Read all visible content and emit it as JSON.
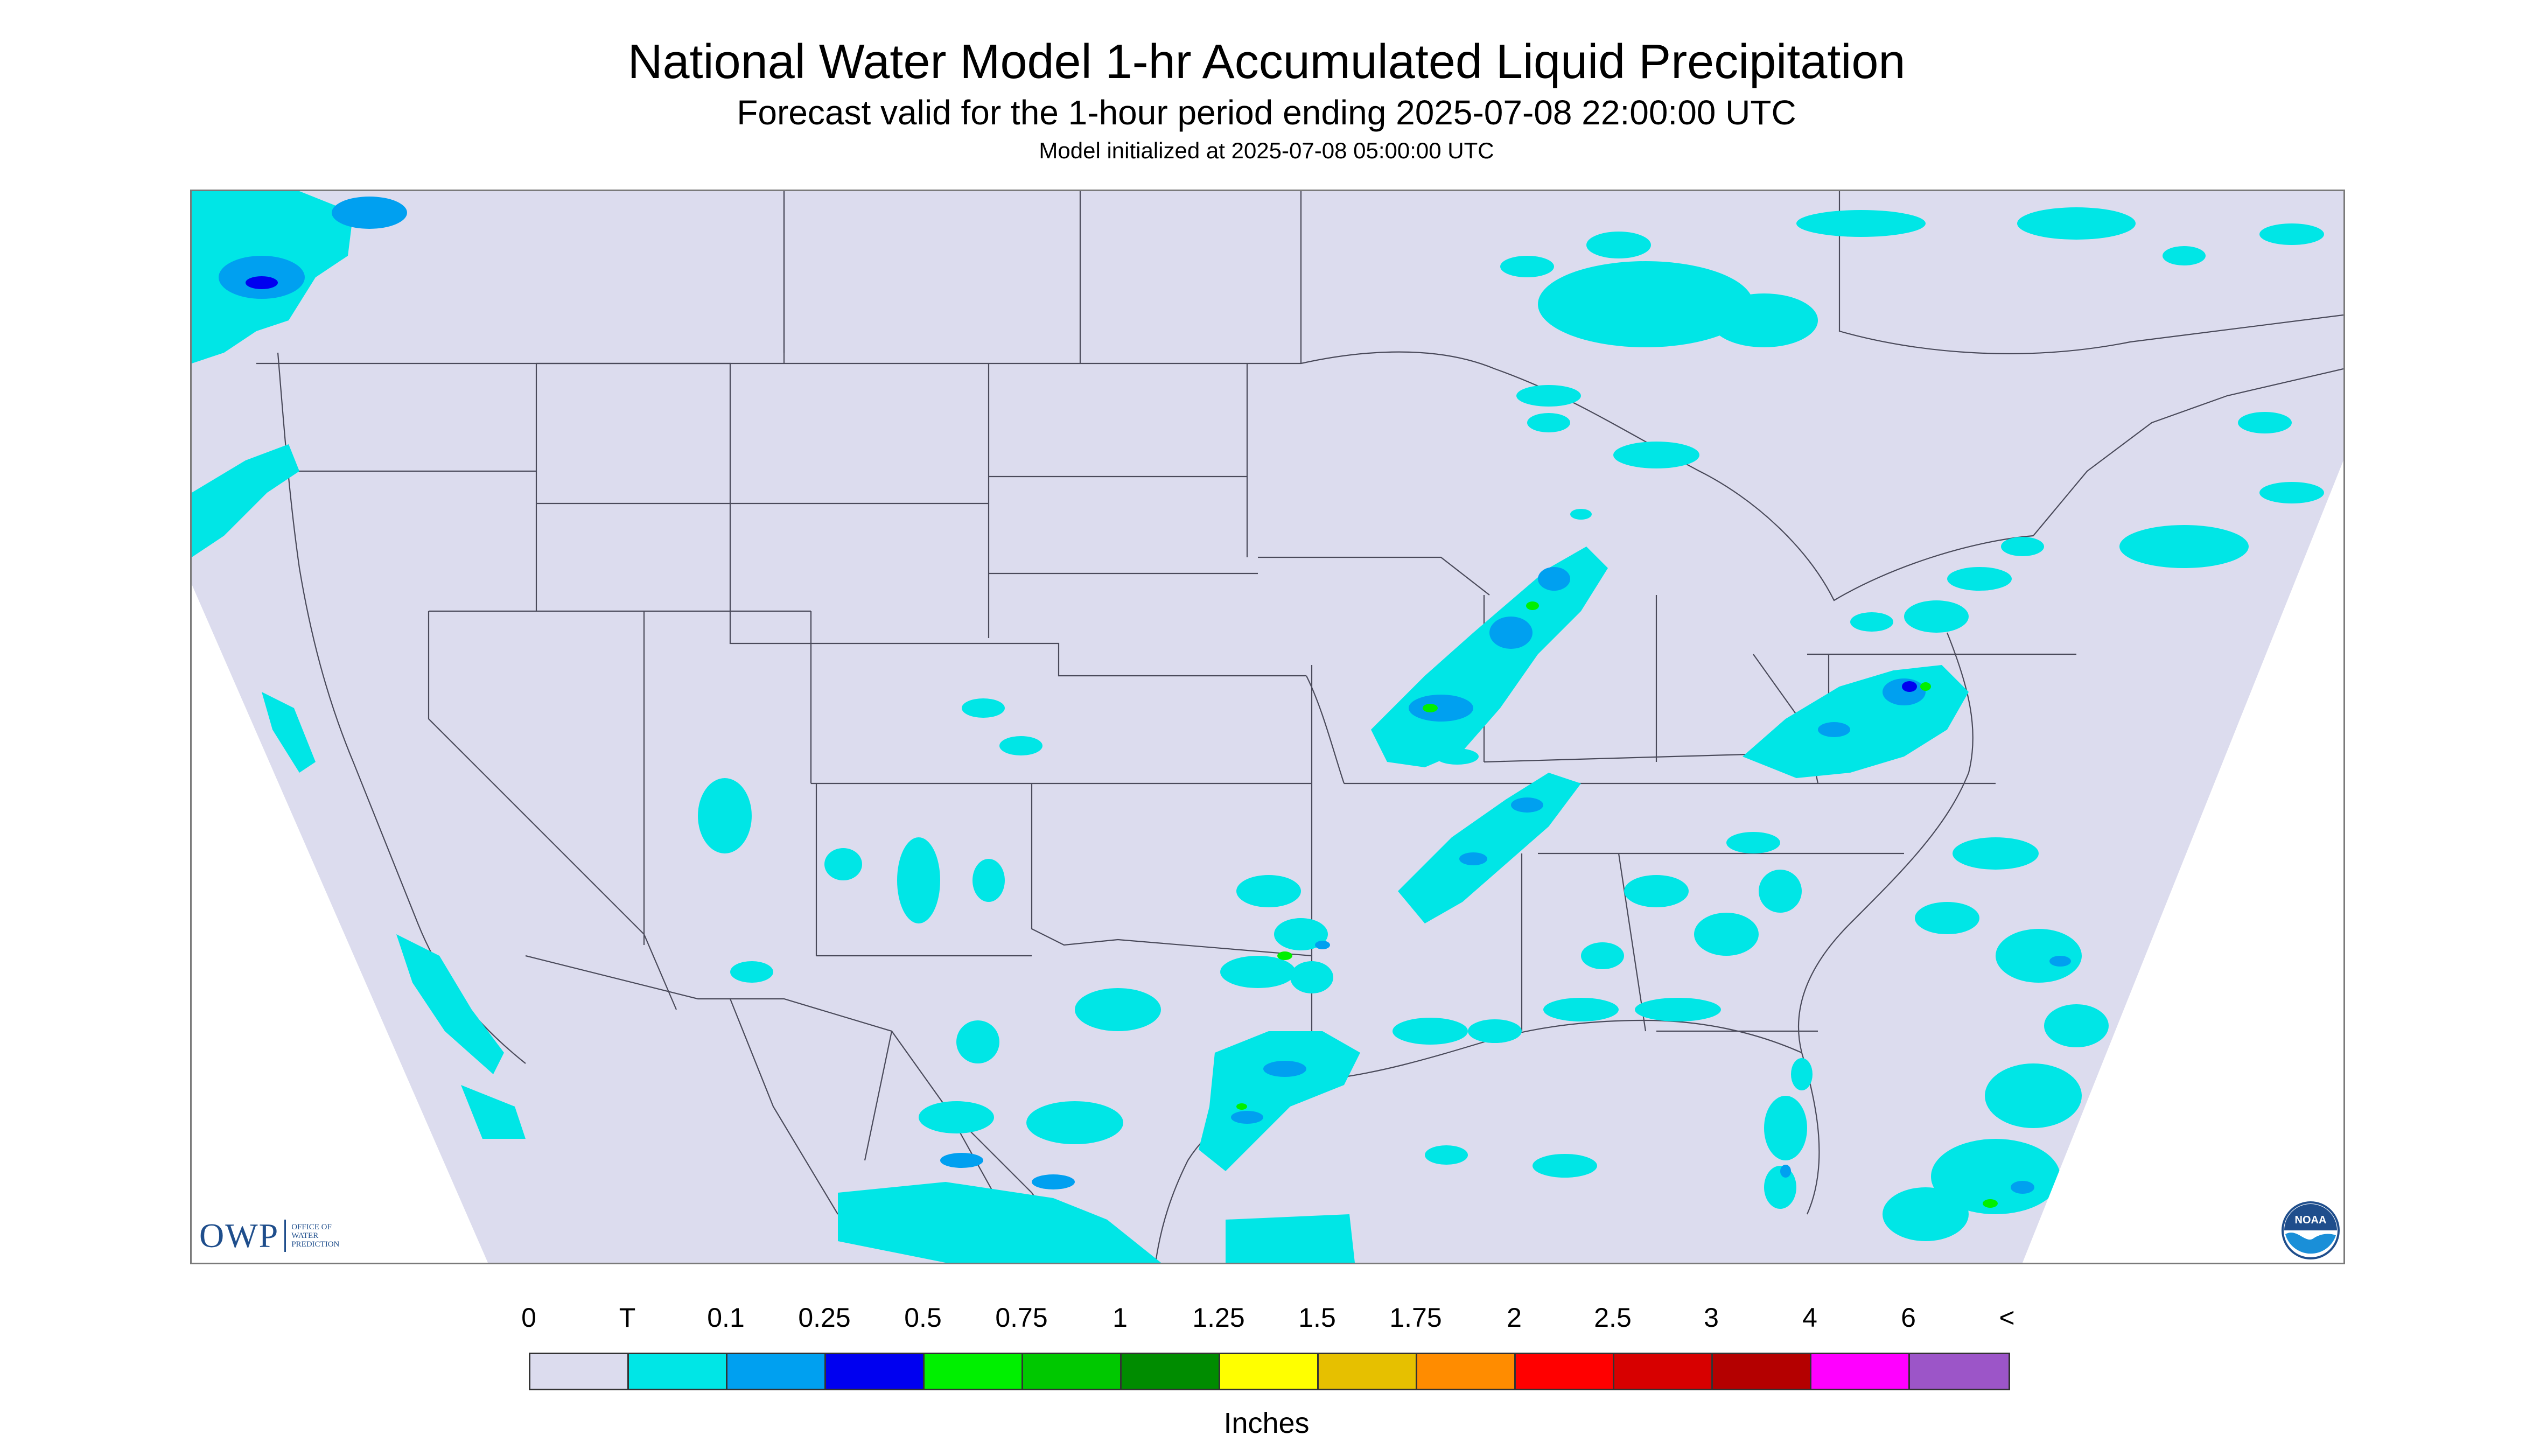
{
  "header": {
    "title": "National Water Model 1-hr Accumulated Liquid Precipitation",
    "subtitle": "Forecast valid for the 1-hour period ending 2025-07-08 22:00:00 UTC",
    "init_line": "Model initialized at 2025-07-08 05:00:00 UTC"
  },
  "map": {
    "projection_background": "#dcdcee",
    "outside_background": "#ffffff",
    "boundary_color": "#4a4a5a"
  },
  "logos": {
    "owp_letters": "OWP",
    "owp_subtext": "OFFICE OF\nWATER\nPREDICTION",
    "noaa_text": "NOAA"
  },
  "legend": {
    "tick_labels": [
      "0",
      "T",
      "0.1",
      "0.25",
      "0.5",
      "0.75",
      "1",
      "1.25",
      "1.5",
      "1.75",
      "2",
      "2.5",
      "3",
      "4",
      "6",
      "<"
    ],
    "colors": [
      "#dcdcee",
      "#00e6e6",
      "#00a0f0",
      "#0000f0",
      "#00f000",
      "#00c800",
      "#008c00",
      "#ffff00",
      "#e6c000",
      "#ff8c00",
      "#ff0000",
      "#d70000",
      "#b40000",
      "#ff00ff",
      "#9c55c8"
    ],
    "units": "Inches"
  },
  "precip_clusters": [
    {
      "name": "pacific-northwest",
      "level": "#00e6e6"
    },
    {
      "name": "upper-midwest-line",
      "level": "#00a0f0"
    },
    {
      "name": "mid-atlantic",
      "level": "#0000f0"
    },
    {
      "name": "gulf-coast",
      "level": "#00a0f0"
    },
    {
      "name": "southwest-monsoon",
      "level": "#00e6e6"
    },
    {
      "name": "florida",
      "level": "#00e6e6"
    },
    {
      "name": "western-atlantic",
      "level": "#00a0f0"
    }
  ]
}
